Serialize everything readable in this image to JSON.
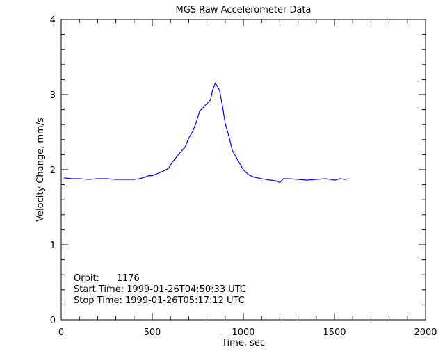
{
  "chart_data": {
    "type": "line",
    "title": "MGS Raw Accelerometer Data",
    "xlabel": "Time, sec",
    "ylabel": "Velocity Change, mm/s",
    "xlim": [
      0,
      2000
    ],
    "ylim": [
      0,
      4
    ],
    "xticks": [
      "0",
      "500",
      "1000",
      "1500",
      "2000"
    ],
    "yticks": [
      "0",
      "1",
      "2",
      "3",
      "4"
    ],
    "grid": false,
    "line_color": "#0000ff",
    "annotations": [
      "Orbit:      1176",
      "Start Time: 1999-01-26T04:50:33 UTC",
      "Stop Time: 1999-01-26T05:17:12 UTC"
    ],
    "series": [
      {
        "name": "velocity",
        "x": [
          15,
          60,
          100,
          150,
          200,
          250,
          300,
          350,
          400,
          430,
          460,
          480,
          500,
          530,
          560,
          590,
          610,
          630,
          650,
          680,
          700,
          720,
          740,
          760,
          780,
          800,
          820,
          830,
          845,
          855,
          870,
          885,
          900,
          920,
          940,
          960,
          980,
          1000,
          1030,
          1060,
          1100,
          1150,
          1180,
          1200,
          1220,
          1250,
          1300,
          1350,
          1400,
          1450,
          1480,
          1500,
          1530,
          1560,
          1580
        ],
        "y": [
          1.89,
          1.88,
          1.88,
          1.87,
          1.88,
          1.88,
          1.87,
          1.87,
          1.87,
          1.88,
          1.9,
          1.92,
          1.92,
          1.95,
          1.98,
          2.02,
          2.1,
          2.16,
          2.22,
          2.3,
          2.42,
          2.5,
          2.62,
          2.78,
          2.83,
          2.88,
          2.93,
          3.05,
          3.15,
          3.12,
          3.05,
          2.85,
          2.62,
          2.45,
          2.25,
          2.17,
          2.08,
          2.0,
          1.93,
          1.9,
          1.88,
          1.86,
          1.85,
          1.83,
          1.88,
          1.88,
          1.87,
          1.86,
          1.87,
          1.88,
          1.87,
          1.86,
          1.88,
          1.87,
          1.88
        ]
      }
    ]
  }
}
